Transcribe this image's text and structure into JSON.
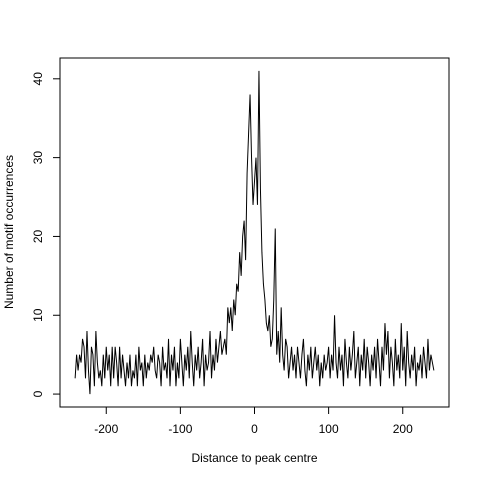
{
  "chart_data": {
    "type": "line",
    "xlabel": "Distance to peak centre",
    "ylabel": "Number of motif occurrences",
    "color": "#000000",
    "xlim": [
      -262.4,
      262.4
    ],
    "ylim": [
      -1.64,
      42.64
    ],
    "xticks": [
      -200,
      -100,
      0,
      100,
      200
    ],
    "yticks": [
      0,
      10,
      20,
      30,
      40
    ],
    "x": [
      -242,
      -240,
      -238,
      -236,
      -234,
      -232,
      -230,
      -228,
      -226,
      -224,
      -222,
      -220,
      -218,
      -216,
      -214,
      -212,
      -210,
      -208,
      -206,
      -204,
      -202,
      -200,
      -198,
      -196,
      -194,
      -192,
      -190,
      -188,
      -186,
      -184,
      -182,
      -180,
      -178,
      -176,
      -174,
      -172,
      -170,
      -168,
      -166,
      -164,
      -162,
      -160,
      -158,
      -156,
      -154,
      -152,
      -150,
      -148,
      -146,
      -144,
      -142,
      -140,
      -138,
      -136,
      -134,
      -132,
      -130,
      -128,
      -126,
      -124,
      -122,
      -120,
      -118,
      -116,
      -114,
      -112,
      -110,
      -108,
      -106,
      -104,
      -102,
      -100,
      -98,
      -96,
      -94,
      -92,
      -90,
      -88,
      -86,
      -84,
      -82,
      -80,
      -78,
      -76,
      -74,
      -72,
      -70,
      -68,
      -66,
      -64,
      -62,
      -60,
      -58,
      -56,
      -54,
      -52,
      -50,
      -48,
      -46,
      -44,
      -42,
      -40,
      -38,
      -36,
      -34,
      -32,
      -30,
      -28,
      -26,
      -24,
      -22,
      -20,
      -18,
      -16,
      -14,
      -12,
      -10,
      -8,
      -6,
      -4,
      -2,
      0,
      2,
      4,
      6,
      8,
      10,
      12,
      14,
      16,
      18,
      20,
      22,
      24,
      26,
      28,
      30,
      32,
      34,
      36,
      38,
      40,
      42,
      44,
      46,
      48,
      50,
      52,
      54,
      56,
      58,
      60,
      62,
      64,
      66,
      68,
      70,
      72,
      74,
      76,
      78,
      80,
      82,
      84,
      86,
      88,
      90,
      92,
      94,
      96,
      98,
      100,
      102,
      104,
      106,
      108,
      110,
      112,
      114,
      116,
      118,
      120,
      122,
      124,
      126,
      128,
      130,
      132,
      134,
      136,
      138,
      140,
      142,
      144,
      146,
      148,
      150,
      152,
      154,
      156,
      158,
      160,
      162,
      164,
      166,
      168,
      170,
      172,
      174,
      176,
      178,
      180,
      182,
      184,
      186,
      188,
      190,
      192,
      194,
      196,
      198,
      200,
      202,
      204,
      206,
      208,
      210,
      212,
      214,
      216,
      218,
      220,
      222,
      224,
      226,
      228,
      230,
      232,
      234,
      236,
      238,
      240,
      242
    ],
    "values": [
      2,
      5,
      3,
      5,
      4,
      7,
      6,
      2,
      8,
      3,
      0,
      6,
      5,
      1,
      8,
      4,
      2,
      3,
      1,
      5,
      2,
      6,
      3,
      5,
      1,
      6,
      2,
      6,
      4,
      1,
      6,
      2,
      5,
      3,
      1,
      4,
      2,
      5,
      1,
      3,
      2,
      5,
      1,
      6,
      3,
      4,
      1,
      5,
      2,
      4,
      3,
      5,
      4,
      6,
      3,
      2,
      5,
      4,
      1,
      6,
      3,
      4,
      2,
      7,
      1,
      5,
      3,
      6,
      1,
      4,
      2,
      7,
      4,
      1,
      5,
      3,
      6,
      2,
      8,
      4,
      1,
      5,
      3,
      6,
      2,
      4,
      7,
      1,
      5,
      3,
      4,
      8,
      2,
      5,
      3,
      7,
      4,
      6,
      8,
      5,
      6,
      7,
      5,
      11,
      9,
      11,
      8,
      12,
      10,
      14,
      13,
      18,
      15,
      20,
      22,
      17,
      28,
      33,
      38,
      30,
      24,
      27,
      30,
      24,
      41,
      26,
      18,
      14,
      12,
      9,
      8,
      10,
      6,
      7,
      12,
      21,
      5,
      8,
      4,
      11,
      5,
      3,
      7,
      6,
      2,
      4,
      6,
      3,
      5,
      2,
      6,
      4,
      2,
      5,
      7,
      3,
      1,
      5,
      3,
      6,
      2,
      4,
      6,
      3,
      5,
      1,
      4,
      2,
      5,
      3,
      4,
      6,
      2,
      5,
      3,
      10,
      4,
      2,
      6,
      3,
      5,
      1,
      7,
      4,
      2,
      6,
      3,
      5,
      8,
      2,
      4,
      6,
      1,
      5,
      3,
      7,
      2,
      6,
      4,
      1,
      5,
      3,
      6,
      2,
      7,
      4,
      1,
      6,
      3,
      9,
      5,
      8,
      2,
      6,
      4,
      1,
      7,
      3,
      5,
      2,
      9,
      3,
      6,
      1,
      8,
      4,
      2,
      5,
      3,
      6,
      1,
      4,
      3,
      5,
      2,
      6,
      4,
      2,
      7,
      3,
      5,
      4,
      3
    ]
  }
}
